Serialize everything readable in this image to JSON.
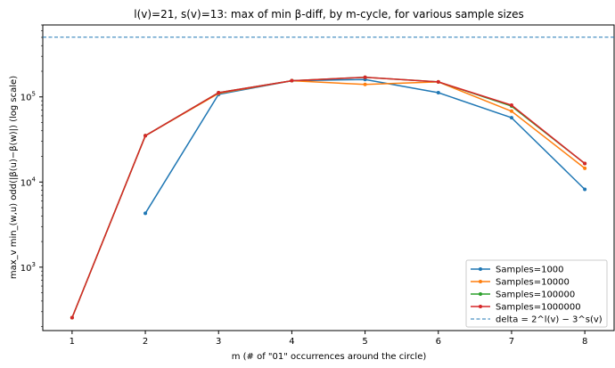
{
  "chart_data": {
    "type": "line",
    "title": "l(v)=21, s(v)=13: max of min β-diff, by m-cycle, for various sample sizes",
    "xlabel": "m  (# of \"01\" occurrences around the circle)",
    "ylabel": "max_v min_(w,u) odd(|β(u)−β(w)|)  (log scale)",
    "yscale": "log",
    "xlim": [
      0.6,
      8.4
    ],
    "ylim": [
      180,
      700000
    ],
    "x_ticks": [
      "1",
      "2",
      "3",
      "4",
      "5",
      "6",
      "7",
      "8"
    ],
    "y_ticks": [
      {
        "value": 1000,
        "base": "10",
        "exp": "3"
      },
      {
        "value": 10000,
        "base": "10",
        "exp": "4"
      },
      {
        "value": 100000,
        "base": "10",
        "exp": "5"
      }
    ],
    "series": [
      {
        "name": "Samples=1000",
        "color": "#1f77b4",
        "x": [
          2,
          3,
          4,
          5,
          6,
          7,
          8
        ],
        "values": [
          4300,
          107000,
          155000,
          160000,
          112000,
          57000,
          8200
        ]
      },
      {
        "name": "Samples=10000",
        "color": "#ff7f0e",
        "x": [
          1,
          2,
          3,
          4,
          5,
          6,
          7,
          8
        ],
        "values": [
          255,
          35000,
          110000,
          155000,
          140000,
          150000,
          68000,
          14500
        ]
      },
      {
        "name": "Samples=100000",
        "color": "#2ca02c",
        "x": [
          1,
          2,
          3,
          4,
          5,
          6,
          7,
          8
        ],
        "values": [
          255,
          35000,
          112000,
          155000,
          170000,
          150000,
          78000,
          16500
        ]
      },
      {
        "name": "Samples=1000000",
        "color": "#d62728",
        "x": [
          1,
          2,
          3,
          4,
          5,
          6,
          7,
          8
        ],
        "values": [
          255,
          35000,
          112000,
          155000,
          170000,
          150000,
          80000,
          16500
        ]
      }
    ],
    "reference_line": {
      "name": "delta = 2^l(v) − 3^s(v)",
      "value": 502829,
      "color": "#1f77b4",
      "style": "dashed"
    },
    "legend_position": "lower-right"
  }
}
